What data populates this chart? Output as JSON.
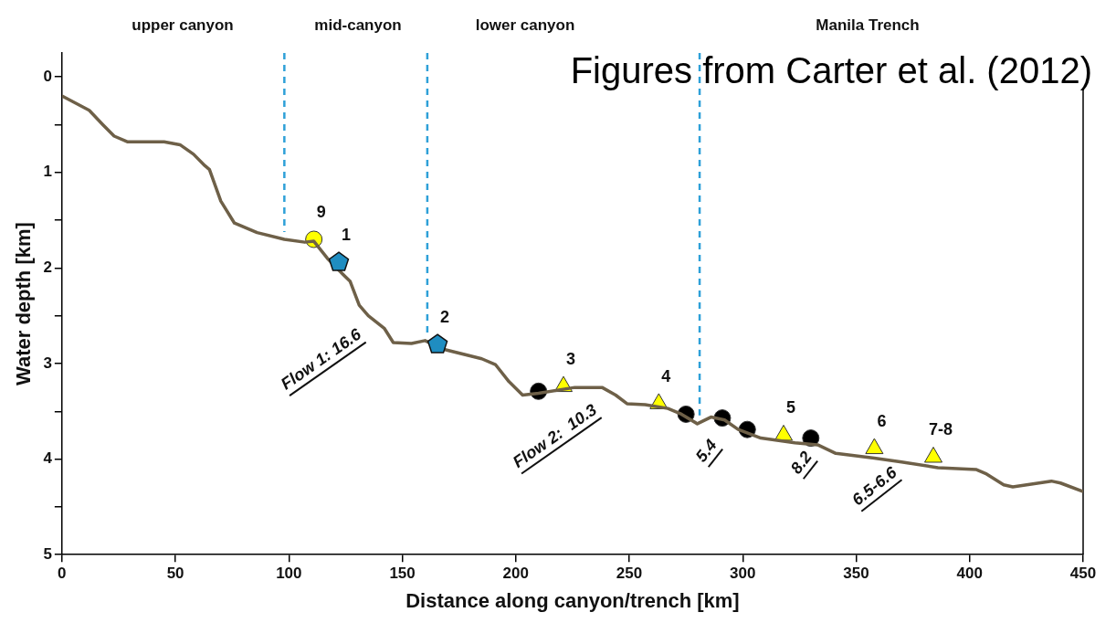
{
  "chart_data": {
    "type": "line",
    "xlabel": "Distance along canyon/trench [km]",
    "ylabel": "Water depth [km]",
    "xlim": [
      0,
      450
    ],
    "xticks": [
      0,
      50,
      100,
      150,
      200,
      250,
      300,
      350,
      400,
      450
    ],
    "ylim": [
      5,
      -0.25
    ],
    "yticks": [
      0,
      {
        "value": 0.5,
        "label": null
      },
      1,
      {
        "value": 1.5,
        "label": null
      },
      2,
      {
        "value": 2.5,
        "label": null
      },
      3,
      {
        "value": 3.5,
        "label": null
      },
      4,
      {
        "value": 4.5,
        "label": null
      },
      5
    ],
    "grid": false,
    "legend": false,
    "series": [
      {
        "color": "#6e6048",
        "marker": "none",
        "x": [
          0,
          12,
          18,
          23,
          29,
          45,
          52,
          58,
          63,
          65,
          70,
          76,
          86,
          98,
          107,
          111,
          117,
          124,
          127,
          131,
          135,
          142,
          146,
          154,
          160,
          168,
          185,
          191,
          197,
          203,
          210,
          226,
          238,
          244,
          249,
          257,
          267,
          273,
          280,
          286,
          292,
          298,
          308,
          323,
          333,
          341,
          358,
          370,
          386,
          403,
          407,
          415,
          419,
          436,
          440,
          450
        ],
        "values": [
          0.2,
          0.35,
          0.5,
          0.62,
          0.68,
          0.68,
          0.71,
          0.81,
          0.93,
          0.97,
          1.3,
          1.53,
          1.63,
          1.7,
          1.73,
          1.72,
          1.9,
          2.07,
          2.14,
          2.39,
          2.5,
          2.63,
          2.78,
          2.79,
          2.76,
          2.85,
          2.95,
          3.01,
          3.19,
          3.33,
          3.31,
          3.25,
          3.25,
          3.33,
          3.42,
          3.43,
          3.47,
          3.53,
          3.63,
          3.56,
          3.59,
          3.69,
          3.78,
          3.83,
          3.85,
          3.94,
          3.99,
          4.03,
          4.09,
          4.11,
          4.15,
          4.27,
          4.29,
          4.23,
          4.25,
          4.34
        ]
      },
      {
        "type": "scatter",
        "color": "#ffff00",
        "marker": "circle",
        "x": [
          111
        ],
        "values": [
          1.7
        ]
      },
      {
        "type": "scatter",
        "color": "#1f8dc1",
        "x": [
          122,
          165.5
        ],
        "values": [
          1.94,
          2.8
        ]
      },
      {
        "type": "scatter",
        "color": "#ffff00",
        "marker": "triangle",
        "x": [
          221,
          263,
          318,
          358,
          384
        ],
        "values": [
          3.24,
          3.42,
          3.75,
          3.89,
          3.98
        ]
      },
      {
        "type": "scatter",
        "color": "#000000",
        "marker": "circle",
        "x": [
          210,
          275,
          291,
          302,
          330
        ],
        "values": [
          3.29,
          3.53,
          3.57,
          3.69,
          3.78
        ]
      }
    ],
    "ref_lines": [
      {
        "axis": "x",
        "value": 98,
        "color": "#2ea0d8",
        "line_style": "dashed"
      },
      {
        "axis": "x",
        "value": 161,
        "color": "#2ea0d8",
        "line_style": "dashed"
      },
      {
        "axis": "x",
        "value": 281,
        "color": "#2ea0d8",
        "line_style": "dashed"
      }
    ],
    "annotations": [
      "Figures from Carter et al. (2012)",
      "upper canyon",
      "mid-canyon",
      "lower canyon",
      "Manila Trench",
      "Flow 1: 16.6",
      "Flow 2:  10.3",
      "5.4",
      "8.2",
      "6.5-6.6",
      {
        "text": "9",
        "x": 111,
        "y": 1.7
      },
      {
        "text": "1",
        "x": 122,
        "y": 1.94
      },
      {
        "text": "2",
        "x": 165.5,
        "y": 2.8
      },
      {
        "text": "3",
        "x": 221,
        "y": 3.24
      },
      {
        "text": "4",
        "x": 263,
        "y": 3.42
      },
      {
        "text": "5",
        "x": 318,
        "y": 3.75
      },
      {
        "text": "6",
        "x": 358,
        "y": 3.89
      },
      {
        "text": "7-8",
        "x": 384,
        "y": 3.98
      }
    ]
  }
}
